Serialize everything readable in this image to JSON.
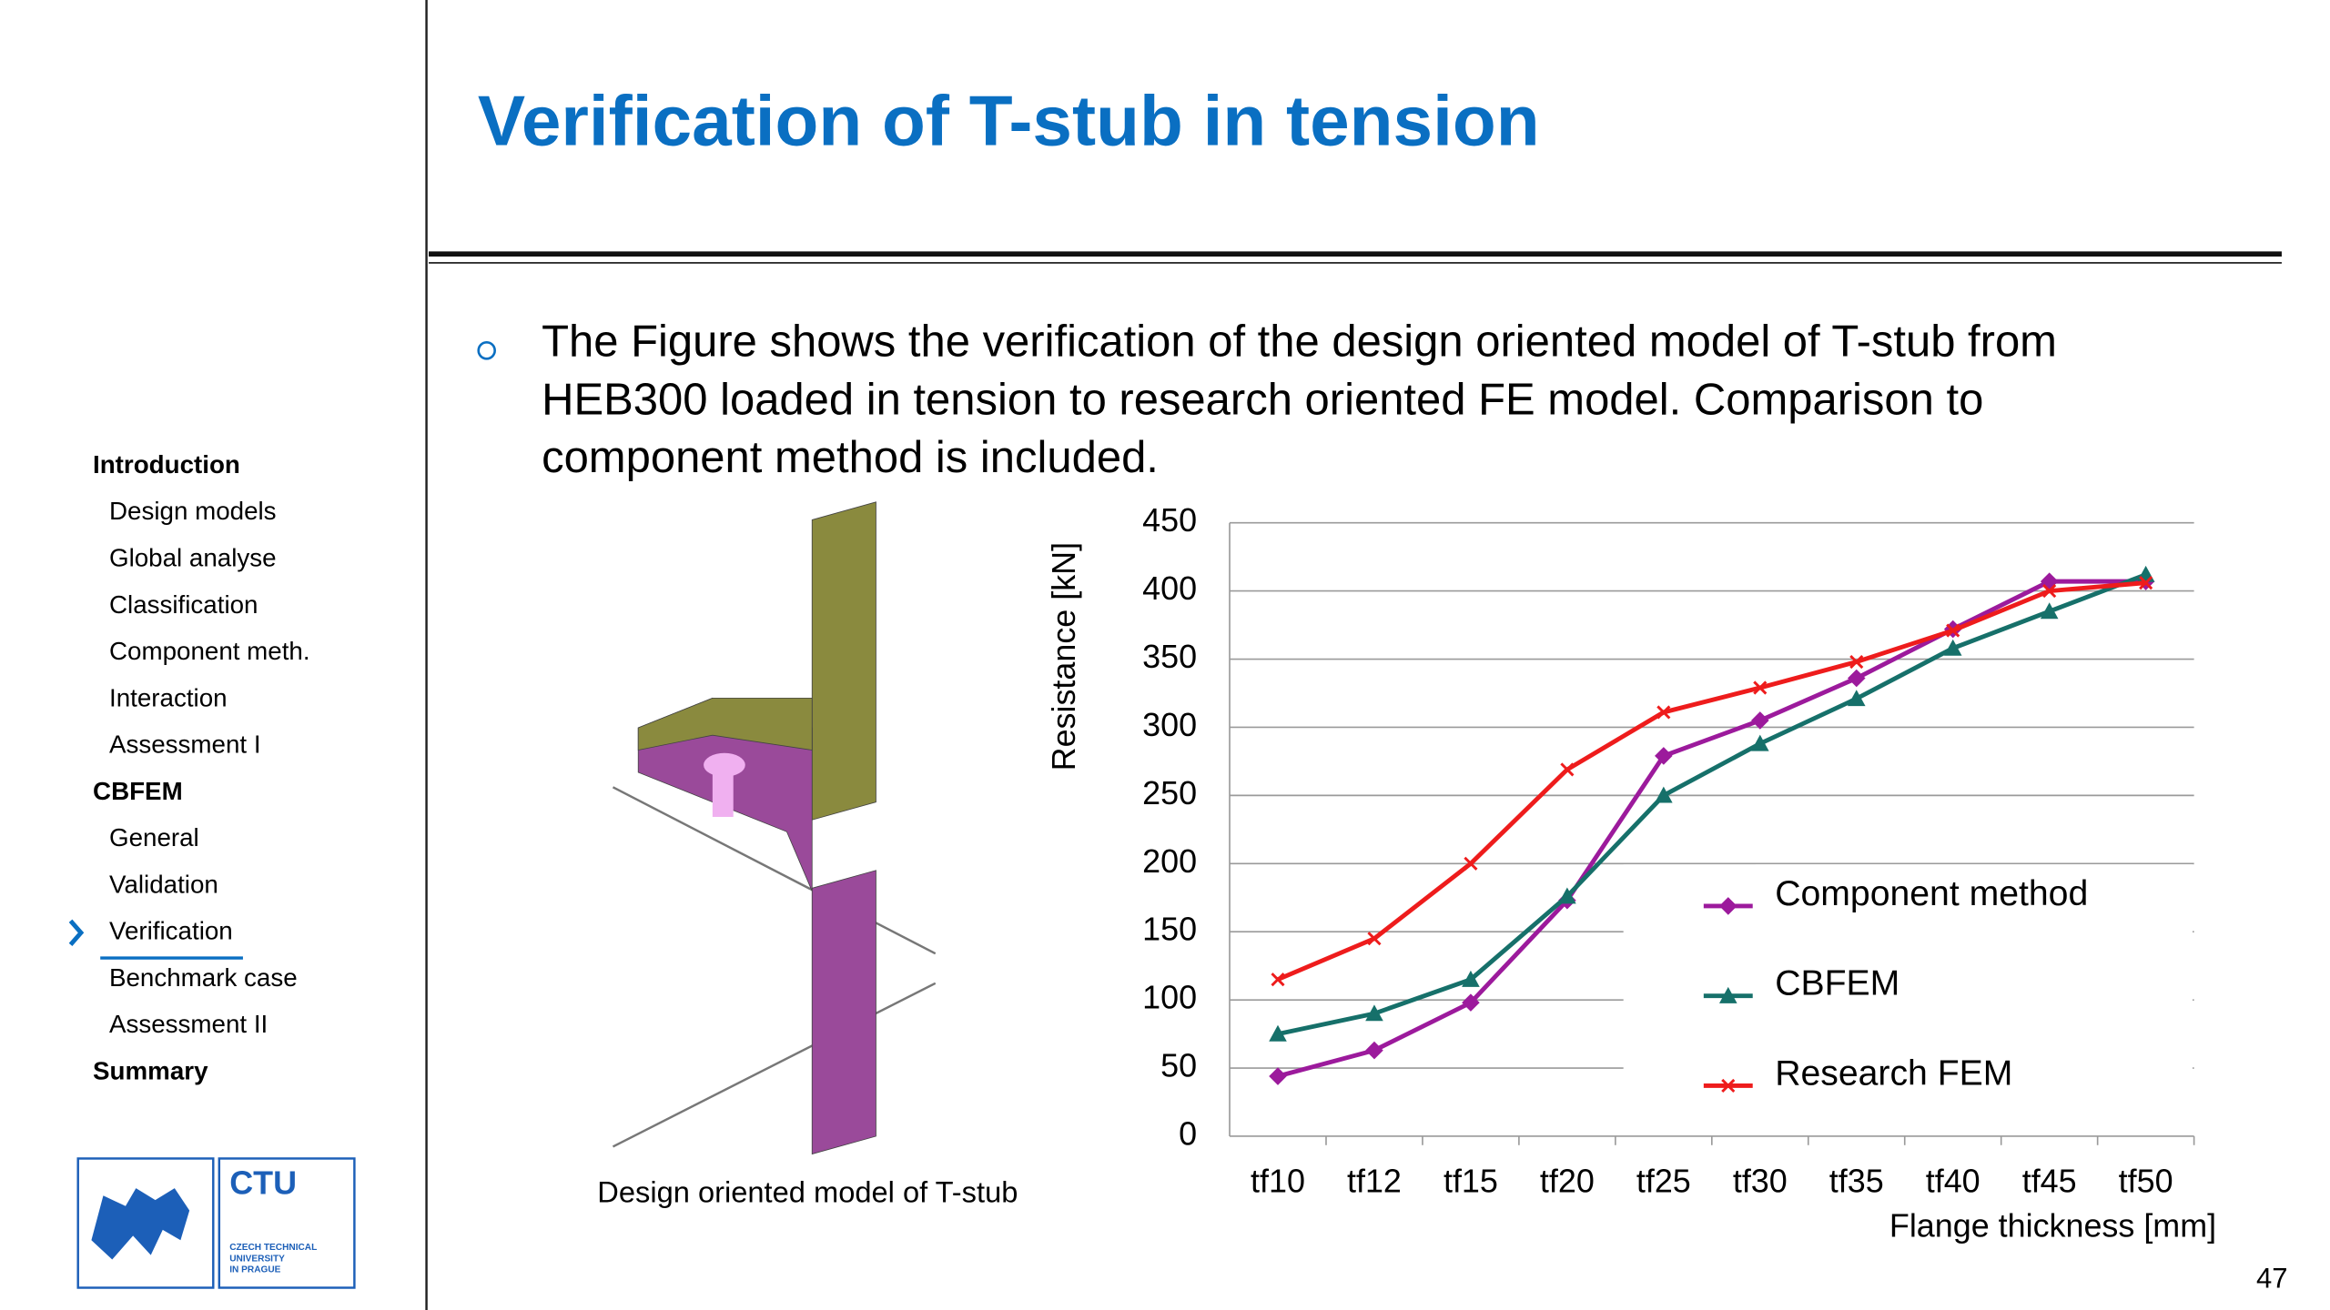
{
  "header": {
    "title": "Verification of T-stub in tension",
    "page_number": "47"
  },
  "nav": {
    "items": [
      {
        "label": "Introduction",
        "level": 1
      },
      {
        "label": "Design models",
        "level": 2
      },
      {
        "label": "Global analyse",
        "level": 2
      },
      {
        "label": "Classification",
        "level": 2
      },
      {
        "label": "Component meth.",
        "level": 2
      },
      {
        "label": "Interaction",
        "level": 2
      },
      {
        "label": "Assessment I",
        "level": 2
      },
      {
        "label": "CBFEM",
        "level": 1
      },
      {
        "label": "General",
        "level": 2
      },
      {
        "label": "Validation",
        "level": 2
      },
      {
        "label": "Verification",
        "level": 2,
        "active": true
      },
      {
        "label": "Benchmark case",
        "level": 2
      },
      {
        "label": "Assessment II",
        "level": 2
      },
      {
        "label": "Summary",
        "level": 1
      }
    ]
  },
  "logo": {
    "acronym": "CTU",
    "lines": [
      "CZECH TECHNICAL",
      "UNIVERSITY",
      "IN PRAGUE"
    ]
  },
  "body": {
    "bullet_lines": [
      "The Figure shows the verification of the design oriented model of T-stub from",
      "HEB300 loaded in tension to research oriented FE model. Comparison to",
      "component method is included."
    ],
    "figure_caption": "Design oriented model of T-stub"
  },
  "chart_data": {
    "type": "line",
    "x_label": "Flange thickness [mm]",
    "y_label": "Resistance [kN]",
    "categories": [
      "tf10",
      "tf12",
      "tf15",
      "tf20",
      "tf25",
      "tf30",
      "tf35",
      "tf40",
      "tf45",
      "tf50"
    ],
    "ylim": [
      0,
      450
    ],
    "yticks": [
      0,
      50,
      100,
      150,
      200,
      250,
      300,
      350,
      400,
      450
    ],
    "grid": true,
    "series": [
      {
        "name": "Component method",
        "color": "#9c1a9c",
        "marker": "diamond",
        "values": [
          44,
          63,
          98,
          173,
          279,
          305,
          336,
          372,
          407,
          407
        ]
      },
      {
        "name": "CBFEM",
        "color": "#16706a",
        "marker": "triangle",
        "values": [
          75,
          90,
          115,
          176,
          250,
          288,
          321,
          358,
          385,
          412
        ]
      },
      {
        "name": "Research FEM",
        "color": "#ee1c1c",
        "marker": "x",
        "values": [
          115,
          145,
          200,
          269,
          311,
          329,
          348,
          371,
          400,
          406
        ]
      }
    ]
  }
}
